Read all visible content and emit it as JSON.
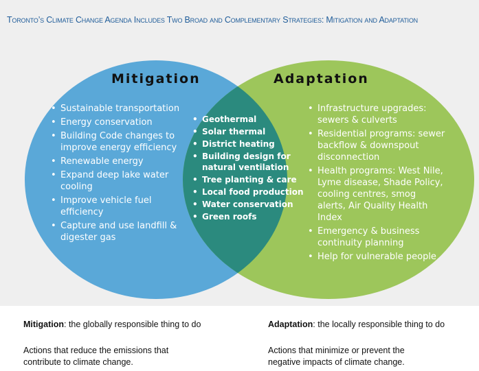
{
  "title": "Toronto’s Climate Change Agenda Includes Two Broad and Complementary Strategies: Mitigation and Adaptation",
  "mitigation": {
    "title": "Mitigation",
    "items": [
      "Sustainable transportation",
      "Energy conservation",
      "Building Code changes to improve energy efficiency",
      "Renewable energy",
      "Expand deep lake water cooling",
      "Improve vehicle fuel efficiency",
      "Capture and use landfill & digester gas"
    ]
  },
  "overlap": {
    "items": [
      "Geothermal",
      "Solar thermal",
      "District heating",
      "Building design for natural ventilation",
      "Tree planting & care",
      "Local food production",
      "Water conservation",
      "Green roofs"
    ]
  },
  "adaptation": {
    "title": "Adaptation",
    "items": [
      "Infrastructure upgrades: sewers & culverts",
      "Residential programs: sewer backflow & downspout disconnection",
      "Health programs: West Nile, Lyme disease, Shade Policy, cooling centres, smog alerts, Air Quality Health Index",
      "Emergency & business continuity planning",
      "Help for vulnerable people"
    ]
  },
  "footer": {
    "mitigation": {
      "term": "Mitigation",
      "text": ":  the globally responsible thing to do",
      "description": "Actions that reduce the emissions that contribute to climate change."
    },
    "adaptation": {
      "term": "Adaptation",
      "text": ":  the locally responsible thing to do",
      "description": "Actions that minimize or prevent the negative impacts of climate change."
    }
  }
}
